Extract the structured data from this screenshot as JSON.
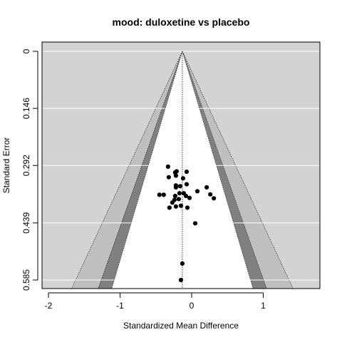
{
  "chart_data": {
    "type": "scatter",
    "subtype": "contour-enhanced funnel plot",
    "title": "mood: duloxetine vs placebo",
    "xlabel": "Standardized Mean Difference",
    "ylabel": "Standard Error",
    "xlim": [
      -2.0,
      1.8
    ],
    "ylim": [
      0.0,
      0.6
    ],
    "y_reversed": true,
    "x_ticks": [
      -2,
      -1,
      0,
      1
    ],
    "x_tick_labels": [
      "-2",
      "-1",
      "0",
      "1"
    ],
    "y_ticks": [
      0,
      0.146,
      0.292,
      0.439,
      0.585
    ],
    "y_tick_labels": [
      "0",
      "0.146",
      "0.292",
      "0.439",
      "0.585"
    ],
    "grid": "horizontal lines at y ticks",
    "pooled_estimate": -0.13,
    "contours": [
      {
        "level": "p < 0.10",
        "z": 1.645,
        "color": "#ffffff"
      },
      {
        "level": "p < 0.05",
        "z": 1.96,
        "color": "#808080"
      },
      {
        "level": "p < 0.01",
        "z": 2.576,
        "color": "#bfbfbf"
      }
    ],
    "background_color": "#d3d3d3",
    "points": [
      {
        "x": -0.33,
        "y": 0.295
      },
      {
        "x": -0.23,
        "y": 0.31
      },
      {
        "x": -0.21,
        "y": 0.307
      },
      {
        "x": -0.07,
        "y": 0.308
      },
      {
        "x": -0.32,
        "y": 0.322
      },
      {
        "x": -0.22,
        "y": 0.318
      },
      {
        "x": -0.12,
        "y": 0.325
      },
      {
        "x": -0.22,
        "y": 0.343
      },
      {
        "x": -0.07,
        "y": 0.34
      },
      {
        "x": -0.22,
        "y": 0.348
      },
      {
        "x": -0.16,
        "y": 0.345
      },
      {
        "x": 0.21,
        "y": 0.348
      },
      {
        "x": 0.08,
        "y": 0.358
      },
      {
        "x": 0.26,
        "y": 0.366
      },
      {
        "x": -0.45,
        "y": 0.367
      },
      {
        "x": -0.39,
        "y": 0.367
      },
      {
        "x": -0.23,
        "y": 0.37
      },
      {
        "x": -0.17,
        "y": 0.363
      },
      {
        "x": -0.11,
        "y": 0.363
      },
      {
        "x": -0.08,
        "y": 0.37
      },
      {
        "x": -0.03,
        "y": 0.375
      },
      {
        "x": 0.31,
        "y": 0.376
      },
      {
        "x": -0.24,
        "y": 0.38
      },
      {
        "x": -0.18,
        "y": 0.378
      },
      {
        "x": -0.27,
        "y": 0.387
      },
      {
        "x": -0.22,
        "y": 0.397
      },
      {
        "x": -0.15,
        "y": 0.395
      },
      {
        "x": -0.31,
        "y": 0.4
      },
      {
        "x": -0.06,
        "y": 0.4
      },
      {
        "x": 0.05,
        "y": 0.44
      },
      {
        "x": -0.13,
        "y": 0.543
      },
      {
        "x": -0.15,
        "y": 0.585
      }
    ]
  }
}
